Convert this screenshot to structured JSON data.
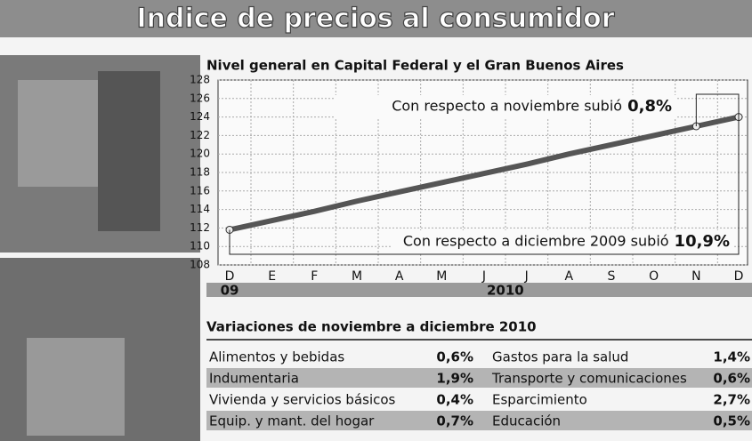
{
  "header": {
    "title": "Indice de precios al consumidor"
  },
  "chart_data": {
    "type": "line",
    "title": "Nivel general en Capital Federal y el Gran Buenos Aires",
    "categories": [
      "D",
      "E",
      "F",
      "M",
      "A",
      "M",
      "J",
      "J",
      "A",
      "S",
      "O",
      "N",
      "D"
    ],
    "year_labels": [
      "09",
      "2010"
    ],
    "values": [
      111.8,
      112.8,
      113.8,
      114.9,
      115.9,
      116.9,
      117.9,
      118.9,
      120.0,
      121.0,
      122.0,
      123.0,
      124.0
    ],
    "color": "#555555",
    "ylim": [
      108,
      128
    ],
    "yticks": [
      108,
      110,
      112,
      114,
      116,
      118,
      120,
      122,
      124,
      126,
      128
    ],
    "grid": true,
    "annotations": [
      {
        "text": "Con respecto a noviembre subió",
        "value": "0,8%"
      },
      {
        "text": "Con respecto a diciembre 2009 subió",
        "value": "10,9%"
      }
    ]
  },
  "table": {
    "title": "Variaciones de noviembre a diciembre 2010",
    "rows": [
      [
        "Alimentos y bebidas",
        "0,6%",
        "Gastos para la salud",
        "1,4%"
      ],
      [
        "Indumentaria",
        "1,9%",
        "Transporte y comunicaciones",
        "0,6%"
      ],
      [
        "Vivienda y servicios básicos",
        "0,4%",
        "Esparcimiento",
        "2,7%"
      ],
      [
        "Equip. y mant. del hogar",
        "0,7%",
        "Educación",
        "0,5%"
      ]
    ]
  }
}
